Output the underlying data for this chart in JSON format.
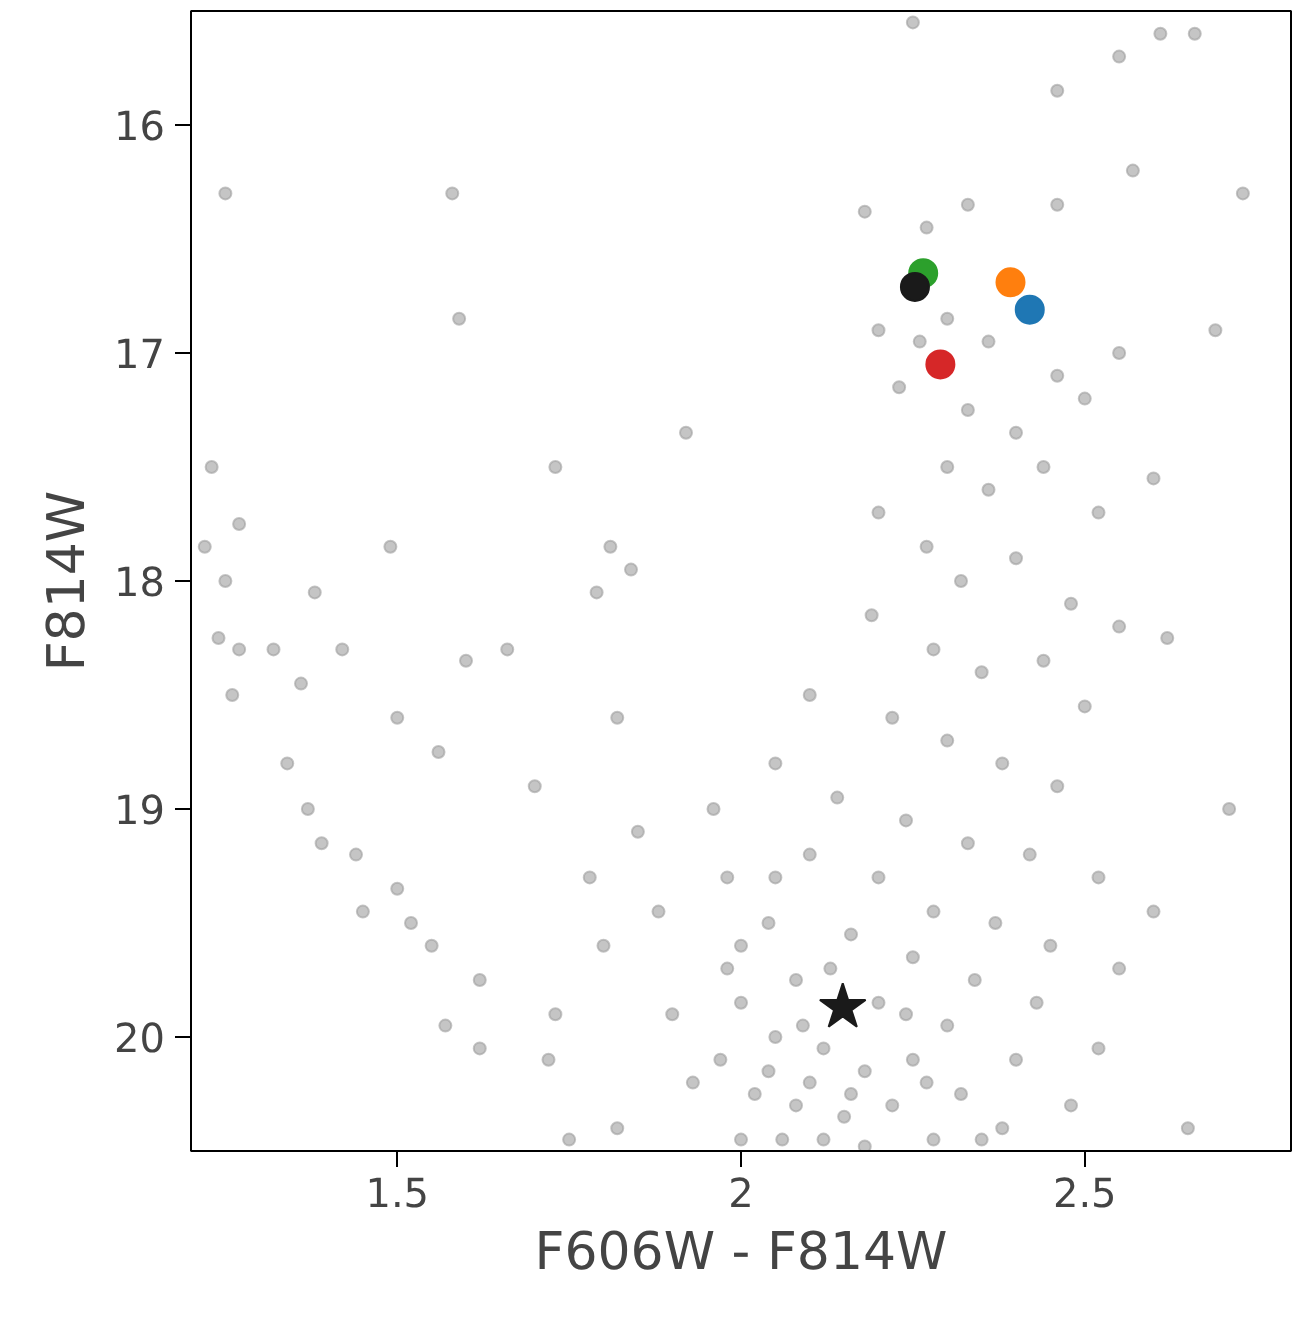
{
  "chart_data": {
    "type": "scatter",
    "xlabel": "F606W - F814W",
    "ylabel": "F814W",
    "xlim": [
      1.2,
      2.8
    ],
    "xticks": [
      1.5,
      2.0,
      2.5
    ],
    "ylim": [
      20.5,
      15.5
    ],
    "yticks": [
      16,
      17,
      18,
      19,
      20
    ],
    "grid": false,
    "marker": "circle",
    "series": [
      {
        "color": "#9e9e9e",
        "x": [
          1.25,
          1.58,
          1.59,
          1.23,
          1.27,
          1.22,
          1.25,
          1.24,
          1.27,
          1.32,
          1.26,
          1.38,
          1.36,
          1.42,
          1.34,
          1.37,
          1.39,
          1.44,
          1.45,
          1.5,
          1.52,
          1.49,
          1.5,
          1.56,
          1.6,
          1.55,
          1.62,
          1.57,
          1.62,
          1.73,
          1.72,
          1.7,
          1.78,
          1.8,
          1.82,
          1.81,
          1.79,
          1.66,
          1.73,
          1.92,
          1.84,
          1.85,
          1.88,
          1.9,
          1.93,
          1.82,
          1.75,
          1.96,
          1.98,
          2.0,
          2.25,
          2.18,
          2.27,
          2.33,
          2.46,
          2.55,
          2.61,
          2.66,
          2.73,
          2.57,
          2.46,
          2.2,
          2.26,
          2.3,
          2.23,
          2.36,
          2.46,
          2.33,
          2.4,
          2.5,
          2.55,
          2.69,
          2.3,
          2.36,
          2.44,
          2.52,
          2.6,
          2.2,
          2.27,
          2.32,
          2.4,
          2.48,
          2.55,
          2.62,
          2.19,
          2.28,
          2.35,
          2.44,
          2.5,
          2.1,
          2.22,
          2.3,
          2.38,
          2.46,
          2.71,
          2.05,
          2.14,
          2.24,
          2.33,
          2.42,
          2.52,
          2.6,
          2.1,
          2.2,
          2.28,
          2.37,
          2.45,
          2.55,
          2.65,
          2.04,
          2.16,
          2.25,
          2.34,
          2.43,
          2.52,
          2.08,
          2.2,
          2.3,
          2.4,
          2.48,
          2.0,
          2.05,
          2.12,
          2.18,
          2.25,
          2.32,
          2.38,
          1.97,
          2.02,
          2.08,
          2.15,
          2.22,
          2.28,
          2.35,
          2.0,
          2.06,
          2.12,
          2.18,
          2.1,
          2.16,
          2.04,
          1.98,
          2.05,
          2.13,
          2.24,
          2.09,
          2.27
        ],
        "values": [
          16.3,
          16.3,
          16.85,
          17.5,
          17.75,
          17.85,
          18.0,
          18.25,
          18.3,
          18.3,
          18.5,
          18.05,
          18.45,
          18.3,
          18.8,
          19.0,
          19.15,
          19.2,
          19.45,
          19.35,
          19.5,
          17.85,
          18.6,
          18.75,
          18.35,
          19.6,
          19.75,
          19.95,
          20.05,
          19.9,
          20.1,
          18.9,
          19.3,
          19.6,
          18.6,
          17.85,
          18.05,
          18.3,
          17.5,
          17.35,
          17.95,
          19.1,
          19.45,
          19.9,
          20.2,
          20.4,
          20.45,
          19.0,
          19.3,
          19.6,
          15.55,
          16.38,
          16.45,
          16.35,
          16.35,
          15.7,
          15.6,
          15.6,
          16.3,
          16.2,
          15.85,
          16.9,
          16.95,
          16.85,
          17.15,
          16.95,
          17.1,
          17.25,
          17.35,
          17.2,
          17.0,
          16.9,
          17.5,
          17.6,
          17.5,
          17.7,
          17.55,
          17.7,
          17.85,
          18.0,
          17.9,
          18.1,
          18.2,
          18.25,
          18.15,
          18.3,
          18.4,
          18.35,
          18.55,
          18.5,
          18.6,
          18.7,
          18.8,
          18.9,
          19.0,
          18.8,
          18.95,
          19.05,
          19.15,
          19.2,
          19.3,
          19.45,
          19.2,
          19.3,
          19.45,
          19.5,
          19.6,
          19.7,
          20.4,
          19.5,
          19.55,
          19.65,
          19.75,
          19.85,
          20.05,
          19.75,
          19.85,
          19.95,
          20.1,
          20.3,
          19.85,
          20.0,
          20.05,
          20.15,
          20.1,
          20.25,
          20.4,
          20.1,
          20.25,
          20.3,
          20.35,
          20.3,
          20.45,
          20.45,
          20.45,
          20.45,
          20.45,
          20.48,
          20.2,
          20.25,
          20.15,
          19.7,
          19.3,
          19.7,
          19.9,
          19.95,
          20.2
        ]
      },
      {
        "color": "#2ca02c",
        "x": [
          2.265
        ],
        "values": [
          16.65
        ]
      },
      {
        "color": "#1a1a1a",
        "x": [
          2.253
        ],
        "values": [
          16.71
        ]
      },
      {
        "color": "#ff7f0e",
        "x": [
          2.392
        ],
        "values": [
          16.69
        ]
      },
      {
        "color": "#1f77b4",
        "x": [
          2.42
        ],
        "values": [
          16.81
        ]
      },
      {
        "color": "#d62728",
        "x": [
          2.29
        ],
        "values": [
          17.05
        ]
      },
      {
        "color": "#1a1a1a",
        "x": [
          2.148
        ],
        "values": [
          19.87
        ],
        "marker": "star"
      }
    ]
  }
}
